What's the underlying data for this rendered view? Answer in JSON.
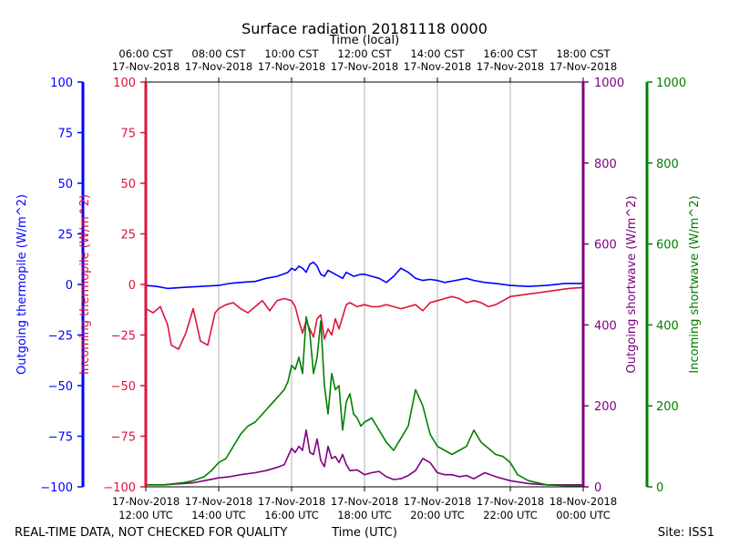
{
  "chart_data": {
    "type": "line",
    "title": "Surface radiation 20181118 0000",
    "top_axis_label": "Time (local)",
    "top_ticks": [
      {
        "x": 12,
        "line1": "06:00 CST",
        "line2": "17-Nov-2018"
      },
      {
        "x": 14,
        "line1": "08:00 CST",
        "line2": "17-Nov-2018"
      },
      {
        "x": 16,
        "line1": "10:00 CST",
        "line2": "17-Nov-2018"
      },
      {
        "x": 18,
        "line1": "12:00 CST",
        "line2": "17-Nov-2018"
      },
      {
        "x": 20,
        "line1": "14:00 CST",
        "line2": "17-Nov-2018"
      },
      {
        "x": 22,
        "line1": "16:00 CST",
        "line2": "17-Nov-2018"
      },
      {
        "x": 24,
        "line1": "18:00 CST",
        "line2": "17-Nov-2018"
      }
    ],
    "bottom_axis_label": "Time (UTC)",
    "bottom_ticks": [
      {
        "x": 12,
        "line1": "17-Nov-2018",
        "line2": "12:00 UTC"
      },
      {
        "x": 14,
        "line1": "17-Nov-2018",
        "line2": "14:00 UTC"
      },
      {
        "x": 16,
        "line1": "17-Nov-2018",
        "line2": "16:00 UTC"
      },
      {
        "x": 18,
        "line1": "17-Nov-2018",
        "line2": "18:00 UTC"
      },
      {
        "x": 20,
        "line1": "17-Nov-2018",
        "line2": "20:00 UTC"
      },
      {
        "x": 22,
        "line1": "17-Nov-2018",
        "line2": "22:00 UTC"
      },
      {
        "x": 24,
        "line1": "18-Nov-2018",
        "line2": "00:00 UTC"
      }
    ],
    "xlim": [
      12,
      24
    ],
    "vertical_grid": true,
    "axes": [
      {
        "key": "out_thermo",
        "label": "Outgoing thermopile (W/m^2)",
        "color": "#0000ff",
        "ylim": [
          -100,
          100
        ],
        "ticks": [
          -100,
          -75,
          -50,
          -25,
          0,
          25,
          50,
          75,
          100
        ]
      },
      {
        "key": "in_thermo",
        "label": "Incoming thermopile (W/m^2)",
        "color": "#dc143c",
        "ylim": [
          -100,
          100
        ],
        "ticks": [
          -100,
          -75,
          -50,
          -25,
          0,
          25,
          50,
          75,
          100
        ]
      },
      {
        "key": "out_sw",
        "label": "Outgoing shortwave (W/m^2)",
        "color": "#800080",
        "ylim": [
          0,
          1000
        ],
        "ticks": [
          0,
          200,
          400,
          600,
          800,
          1000
        ]
      },
      {
        "key": "in_sw",
        "label": "Incoming shortwave (W/m^2)",
        "color": "#008000",
        "ylim": [
          0,
          1000
        ],
        "ticks": [
          0,
          200,
          400,
          600,
          800,
          1000
        ]
      }
    ],
    "series": [
      {
        "name": "Outgoing thermopile",
        "axis": "out_thermo",
        "color": "#0000ff",
        "x": [
          12.0,
          12.3,
          12.6,
          13.0,
          13.5,
          14.0,
          14.3,
          14.6,
          15.0,
          15.3,
          15.6,
          15.9,
          16.0,
          16.1,
          16.2,
          16.3,
          16.4,
          16.5,
          16.6,
          16.7,
          16.8,
          16.9,
          17.0,
          17.1,
          17.2,
          17.3,
          17.4,
          17.5,
          17.7,
          17.9,
          18.0,
          18.2,
          18.4,
          18.6,
          18.8,
          19.0,
          19.2,
          19.4,
          19.6,
          19.8,
          20.0,
          20.2,
          20.5,
          20.8,
          21.0,
          21.3,
          21.6,
          22.0,
          22.5,
          23.0,
          23.5,
          24.0
        ],
        "y": [
          -0.5,
          -1,
          -2,
          -1.5,
          -1,
          -0.5,
          0.5,
          1,
          1.5,
          3,
          4,
          6,
          8,
          7,
          9,
          8,
          6,
          10,
          11,
          9,
          5,
          4,
          7,
          6,
          5,
          4,
          3,
          6,
          4,
          5,
          5,
          4,
          3,
          1,
          4,
          8,
          6,
          3,
          2,
          2.5,
          2,
          1,
          2,
          3,
          2,
          1,
          0.5,
          -0.5,
          -1,
          -0.5,
          0.5,
          0.5
        ]
      },
      {
        "name": "Incoming thermopile",
        "axis": "in_thermo",
        "color": "#dc143c",
        "x": [
          12.0,
          12.2,
          12.4,
          12.6,
          12.7,
          12.9,
          13.1,
          13.3,
          13.5,
          13.7,
          13.9,
          14.0,
          14.2,
          14.4,
          14.6,
          14.8,
          15.0,
          15.2,
          15.4,
          15.6,
          15.8,
          16.0,
          16.1,
          16.2,
          16.3,
          16.4,
          16.5,
          16.6,
          16.7,
          16.8,
          16.9,
          17.0,
          17.1,
          17.2,
          17.3,
          17.4,
          17.5,
          17.6,
          17.8,
          18.0,
          18.2,
          18.4,
          18.6,
          18.8,
          19.0,
          19.2,
          19.4,
          19.6,
          19.8,
          20.0,
          20.2,
          20.4,
          20.6,
          20.8,
          21.0,
          21.2,
          21.4,
          21.6,
          21.8,
          22.0,
          22.4,
          22.8,
          23.2,
          23.6,
          24.0
        ],
        "y": [
          -12,
          -14,
          -11,
          -20,
          -30,
          -32,
          -24,
          -12,
          -28,
          -30,
          -14,
          -12,
          -10,
          -9,
          -12,
          -14,
          -11,
          -8,
          -13,
          -8,
          -7,
          -8,
          -11,
          -18,
          -24,
          -18,
          -22,
          -26,
          -17,
          -15,
          -27,
          -22,
          -25,
          -17,
          -22,
          -16,
          -10,
          -9,
          -11,
          -10,
          -11,
          -11,
          -10,
          -11,
          -12,
          -11,
          -10,
          -13,
          -9,
          -8,
          -7,
          -6,
          -7,
          -9,
          -8,
          -9,
          -11,
          -10,
          -8,
          -6,
          -5,
          -4,
          -3,
          -2,
          -1.5
        ]
      },
      {
        "name": "Outgoing shortwave",
        "axis": "out_sw",
        "color": "#800080",
        "x": [
          12.0,
          12.5,
          13.0,
          13.3,
          13.6,
          14.0,
          14.3,
          14.6,
          15.0,
          15.3,
          15.6,
          15.8,
          16.0,
          16.1,
          16.2,
          16.3,
          16.4,
          16.5,
          16.6,
          16.7,
          16.8,
          16.9,
          17.0,
          17.1,
          17.2,
          17.3,
          17.4,
          17.5,
          17.6,
          17.8,
          18.0,
          18.2,
          18.4,
          18.6,
          18.8,
          19.0,
          19.2,
          19.4,
          19.6,
          19.8,
          20.0,
          20.2,
          20.4,
          20.6,
          20.8,
          21.0,
          21.3,
          21.6,
          22.0,
          22.5,
          23.0,
          24.0
        ],
        "y": [
          5,
          5,
          8,
          10,
          15,
          22,
          25,
          30,
          35,
          40,
          48,
          55,
          95,
          85,
          100,
          90,
          140,
          85,
          80,
          118,
          65,
          50,
          100,
          70,
          75,
          60,
          80,
          55,
          40,
          42,
          30,
          35,
          38,
          25,
          18,
          20,
          28,
          40,
          70,
          60,
          35,
          30,
          30,
          25,
          28,
          20,
          35,
          25,
          15,
          8,
          5,
          5
        ]
      },
      {
        "name": "Incoming shortwave",
        "axis": "in_sw",
        "color": "#008000",
        "x": [
          12.0,
          12.5,
          13.0,
          13.3,
          13.6,
          13.8,
          14.0,
          14.2,
          14.4,
          14.6,
          14.8,
          15.0,
          15.2,
          15.4,
          15.6,
          15.8,
          15.9,
          16.0,
          16.1,
          16.2,
          16.3,
          16.4,
          16.5,
          16.6,
          16.7,
          16.8,
          16.9,
          17.0,
          17.1,
          17.2,
          17.3,
          17.4,
          17.5,
          17.6,
          17.7,
          17.8,
          17.9,
          18.0,
          18.2,
          18.4,
          18.6,
          18.8,
          19.0,
          19.2,
          19.4,
          19.6,
          19.8,
          20.0,
          20.2,
          20.4,
          20.6,
          20.8,
          21.0,
          21.2,
          21.4,
          21.6,
          21.8,
          22.0,
          22.2,
          22.5,
          23.0,
          23.5,
          24.0
        ],
        "y": [
          5,
          5,
          10,
          15,
          25,
          40,
          60,
          70,
          100,
          130,
          150,
          160,
          180,
          200,
          220,
          240,
          260,
          300,
          290,
          320,
          280,
          420,
          380,
          280,
          320,
          410,
          250,
          180,
          280,
          240,
          250,
          140,
          210,
          230,
          180,
          170,
          150,
          160,
          170,
          140,
          110,
          90,
          120,
          150,
          240,
          200,
          130,
          100,
          90,
          80,
          90,
          100,
          140,
          110,
          95,
          80,
          75,
          60,
          30,
          15,
          5,
          3,
          3
        ]
      }
    ],
    "footer_left": "REAL-TIME DATA, NOT CHECKED FOR QUALITY",
    "footer_right": "Site: ISS1"
  }
}
